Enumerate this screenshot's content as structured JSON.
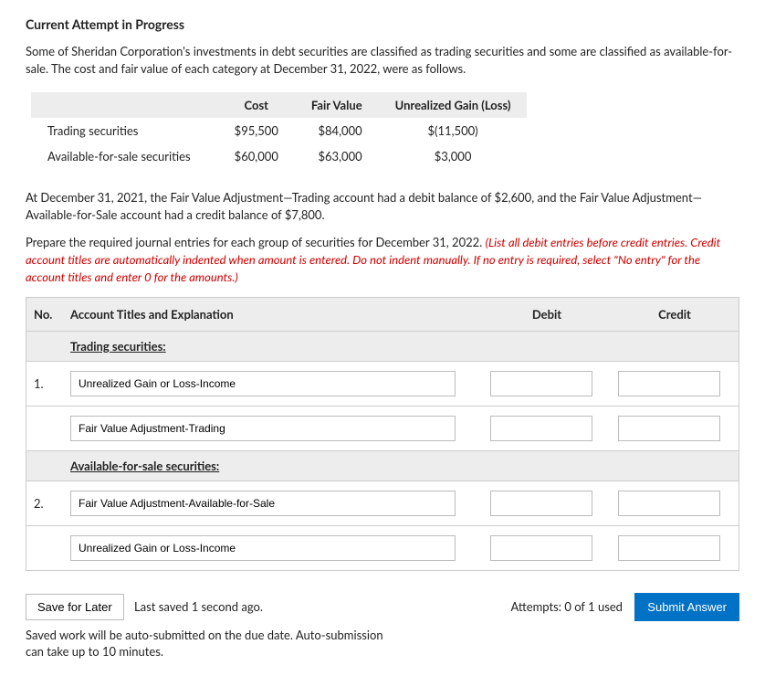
{
  "title": "Current Attempt in Progress",
  "intro": "Some of Sheridan Corporation's investments in debt securities are classified as trading securities and some are classified as available-for-sale. The cost and fair value of each category at December 31, 2022, were as follows.",
  "table": {
    "headers": {
      "c1": "Cost",
      "c2": "Fair Value",
      "c3": "Unrealized Gain (Loss)"
    },
    "rows": [
      {
        "label": "Trading securities",
        "cost": "$95,500",
        "fv": "$84,000",
        "ugl": "$(11,500)"
      },
      {
        "label": "Available-for-sale securities",
        "cost": "$60,000",
        "fv": "$63,000",
        "ugl": "$3,000"
      }
    ]
  },
  "para2": "At December 31, 2021, the Fair Value Adjustment—Trading account had a debit balance of $2,600, and the Fair Value Adjustment—Available-for-Sale account had a credit balance of $7,800.",
  "para3a": "Prepare the required journal entries for each group of securities for December 31, 2022. ",
  "para3b": "(List all debit entries before credit entries. Credit account titles are automatically indented when amount is entered. Do not indent manually. If no entry is required, select \"No entry\" for the account titles and enter 0 for the amounts.)",
  "entries": {
    "hdr_no": "No.",
    "hdr_acct": "Account Titles and Explanation",
    "hdr_debit": "Debit",
    "hdr_credit": "Credit",
    "sub1": "Trading securities:",
    "sub2": "Available-for-sale securities:",
    "r1_no": "1.",
    "r2_no": "2.",
    "line1": "Unrealized Gain or Loss-Income",
    "line2": "Fair Value Adjustment-Trading",
    "line3": "Fair Value Adjustment-Available-for-Sale",
    "line4": "Unrealized Gain or Loss-Income"
  },
  "footer": {
    "save": "Save for Later",
    "last_saved": "Last saved 1 second ago.",
    "attempts": "Attempts: 0 of 1 used",
    "submit": "Submit Answer",
    "autosub": "Saved work will be auto-submitted on the due date. Auto-submission can take up to 10 minutes."
  }
}
